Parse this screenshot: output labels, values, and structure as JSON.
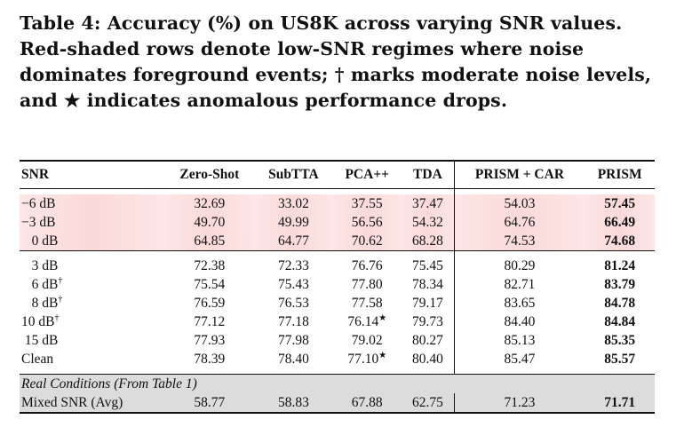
{
  "caption": "Table 4: Accuracy (%) on US8K across varying SNR values. Red-shaded rows denote low-SNR regimes where noise dominates foreground events; † marks moderate noise levels, and ★ indicates anomalous performance drops.",
  "headers": [
    "SNR",
    "Zero-Shot",
    "SubTTA",
    "PCA++",
    "TDA",
    "PRISM + CAR",
    "PRISM"
  ],
  "low_snr_rows": [
    {
      "snr": "−6 dB",
      "zero_shot": "32.69",
      "subtta": "33.02",
      "pca": "37.55",
      "tda": "37.47",
      "prism_car": "54.03",
      "prism": "57.45"
    },
    {
      "snr": "−3 dB",
      "zero_shot": "49.70",
      "subtta": "49.99",
      "pca": "56.56",
      "tda": "54.32",
      "prism_car": "64.76",
      "prism": "66.49"
    },
    {
      "snr": "0 dB",
      "zero_shot": "64.85",
      "subtta": "64.77",
      "pca": "70.62",
      "tda": "68.28",
      "prism_car": "74.53",
      "prism": "74.68"
    }
  ],
  "rows": [
    {
      "snr": "3 dB",
      "mark": "",
      "zero_shot": "72.38",
      "subtta": "72.33",
      "pca": "76.76",
      "pca_mark": "",
      "tda": "75.45",
      "prism_car": "80.29",
      "prism": "81.24"
    },
    {
      "snr": "6 dB",
      "mark": "†",
      "zero_shot": "75.54",
      "subtta": "75.43",
      "pca": "77.80",
      "pca_mark": "",
      "tda": "78.34",
      "prism_car": "82.71",
      "prism": "83.79"
    },
    {
      "snr": "8 dB",
      "mark": "†",
      "zero_shot": "76.59",
      "subtta": "76.53",
      "pca": "77.58",
      "pca_mark": "",
      "tda": "79.17",
      "prism_car": "83.65",
      "prism": "84.78"
    },
    {
      "snr": "10 dB",
      "mark": "†",
      "zero_shot": "77.12",
      "subtta": "77.18",
      "pca": "76.14",
      "pca_mark": "★",
      "tda": "79.73",
      "prism_car": "84.40",
      "prism": "84.84"
    },
    {
      "snr": "15 dB",
      "mark": "",
      "zero_shot": "77.93",
      "subtta": "77.98",
      "pca": "79.02",
      "pca_mark": "",
      "tda": "80.27",
      "prism_car": "85.13",
      "prism": "85.35"
    },
    {
      "snr": "Clean",
      "mark": "",
      "zero_shot": "78.39",
      "subtta": "78.40",
      "pca": "77.10",
      "pca_mark": "★",
      "tda": "80.40",
      "prism_car": "85.47",
      "prism": "85.57"
    }
  ],
  "real_conditions": {
    "label": "Real Conditions (From Table 1)",
    "row": {
      "snr": "Mixed SNR (Avg)",
      "zero_shot": "58.77",
      "subtta": "58.83",
      "pca": "67.88",
      "tda": "62.75",
      "prism_car": "71.23",
      "prism": "71.71"
    }
  }
}
